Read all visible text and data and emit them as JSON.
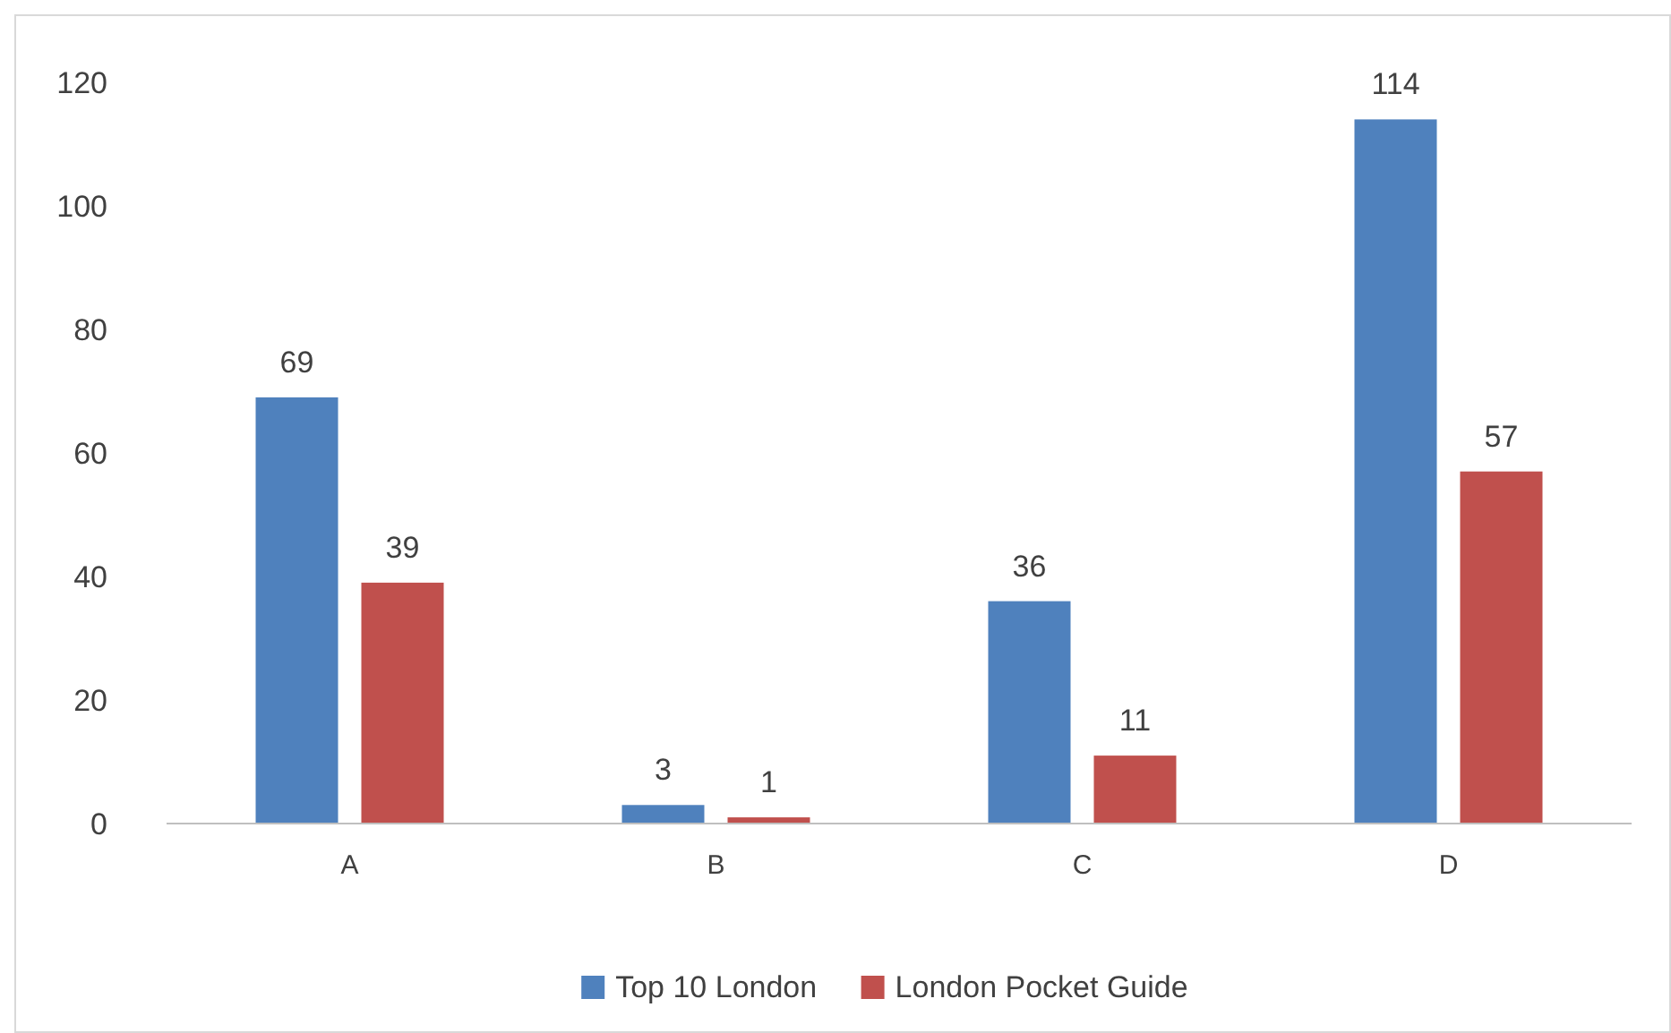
{
  "chart_data": {
    "type": "bar",
    "categories": [
      "A",
      "B",
      "C",
      "D"
    ],
    "series": [
      {
        "name": "Top 10 London",
        "color": "#4f81bd",
        "values": [
          69,
          3,
          36,
          114
        ]
      },
      {
        "name": "London Pocket Guide",
        "color": "#c0504d",
        "values": [
          39,
          1,
          11,
          57
        ]
      }
    ],
    "ylim": [
      0,
      120
    ],
    "yticks": [
      0,
      20,
      40,
      60,
      80,
      100,
      120
    ],
    "data_labels": true,
    "legend": "bottom",
    "grid": false
  }
}
